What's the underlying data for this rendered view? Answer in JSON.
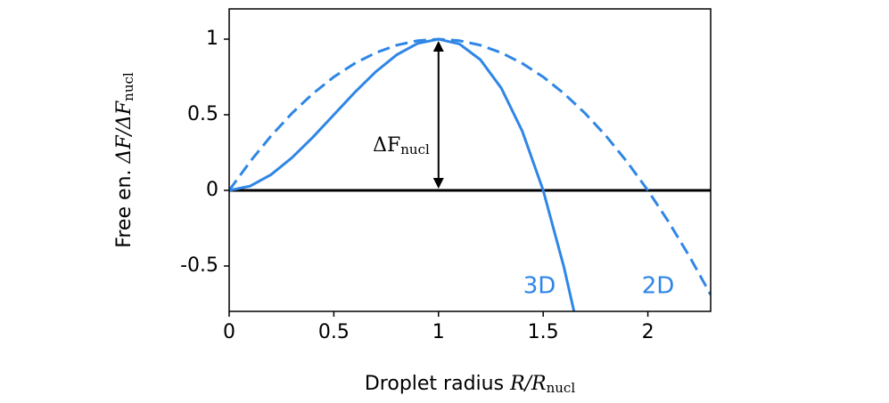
{
  "chart_data": {
    "type": "line",
    "xlabel": {
      "text": "Droplet radius ",
      "math": "R/R",
      "sub": "nucl"
    },
    "ylabel": {
      "text": "Free en. ",
      "math": "ΔF/ΔF",
      "sub": "nucl"
    },
    "annotation": {
      "math": "ΔF",
      "sub": "nucl"
    },
    "xlim": [
      0,
      2.3
    ],
    "ylim": [
      -0.8,
      1.2
    ],
    "xticks": [
      0,
      0.5,
      1,
      1.5,
      2
    ],
    "yticks": [
      -0.5,
      0,
      0.5,
      1
    ],
    "series": [
      {
        "name": "3D",
        "color": "#2f86e6",
        "linestyle": "solid",
        "x": [
          0,
          0.1,
          0.2,
          0.3,
          0.4,
          0.5,
          0.6,
          0.7,
          0.8,
          0.9,
          1.0,
          1.1,
          1.2,
          1.3,
          1.4,
          1.5,
          1.6,
          1.65
        ],
        "values": [
          0,
          0.028,
          0.104,
          0.216,
          0.352,
          0.5,
          0.648,
          0.784,
          0.896,
          0.972,
          1,
          0.968,
          0.864,
          0.676,
          0.392,
          0,
          -0.512,
          -0.817
        ]
      },
      {
        "name": "2D",
        "color": "#2f86e6",
        "linestyle": "dashed",
        "x": [
          0,
          0.1,
          0.2,
          0.3,
          0.4,
          0.5,
          0.6,
          0.7,
          0.8,
          0.9,
          1.0,
          1.1,
          1.2,
          1.3,
          1.4,
          1.5,
          1.6,
          1.7,
          1.8,
          1.9,
          2.0,
          2.1,
          2.2,
          2.3
        ],
        "values": [
          0,
          0.19,
          0.36,
          0.51,
          0.64,
          0.75,
          0.84,
          0.91,
          0.96,
          0.99,
          1,
          0.99,
          0.96,
          0.91,
          0.84,
          0.75,
          0.64,
          0.51,
          0.36,
          0.19,
          0,
          -0.21,
          -0.44,
          -0.69
        ]
      }
    ]
  }
}
